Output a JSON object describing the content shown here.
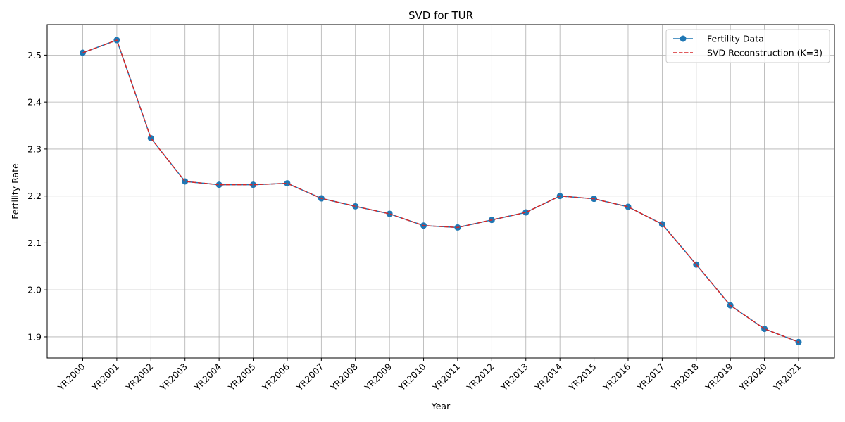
{
  "chart_data": {
    "type": "line",
    "title": "SVD for TUR",
    "xlabel": "Year",
    "ylabel": "Fertility Rate",
    "categories": [
      "YR2000",
      "YR2001",
      "YR2002",
      "YR2003",
      "YR2004",
      "YR2005",
      "YR2006",
      "YR2007",
      "YR2008",
      "YR2009",
      "YR2010",
      "YR2011",
      "YR2012",
      "YR2013",
      "YR2014",
      "YR2015",
      "YR2016",
      "YR2017",
      "YR2018",
      "YR2019",
      "YR2020",
      "YR2021"
    ],
    "yticks": [
      "1.9",
      "2.0",
      "2.1",
      "2.2",
      "2.3",
      "2.4",
      "2.5"
    ],
    "ylim": [
      1.855,
      2.565
    ],
    "grid": true,
    "legend_position": "top-right",
    "series": [
      {
        "name": "Fertility Data",
        "color": "#1f77b4",
        "style": "solid-with-circle-markers",
        "values": [
          2.505,
          2.532,
          2.323,
          2.231,
          2.224,
          2.224,
          2.227,
          2.195,
          2.178,
          2.162,
          2.137,
          2.133,
          2.149,
          2.165,
          2.2,
          2.194,
          2.177,
          2.14,
          2.054,
          1.967,
          1.917,
          1.889
        ]
      },
      {
        "name": "SVD Reconstruction (K=3)",
        "color": "#d62728",
        "style": "dashed",
        "values": [
          2.505,
          2.532,
          2.323,
          2.231,
          2.224,
          2.224,
          2.227,
          2.195,
          2.178,
          2.162,
          2.137,
          2.133,
          2.149,
          2.165,
          2.2,
          2.194,
          2.177,
          2.14,
          2.054,
          1.967,
          1.917,
          1.889
        ]
      }
    ]
  }
}
